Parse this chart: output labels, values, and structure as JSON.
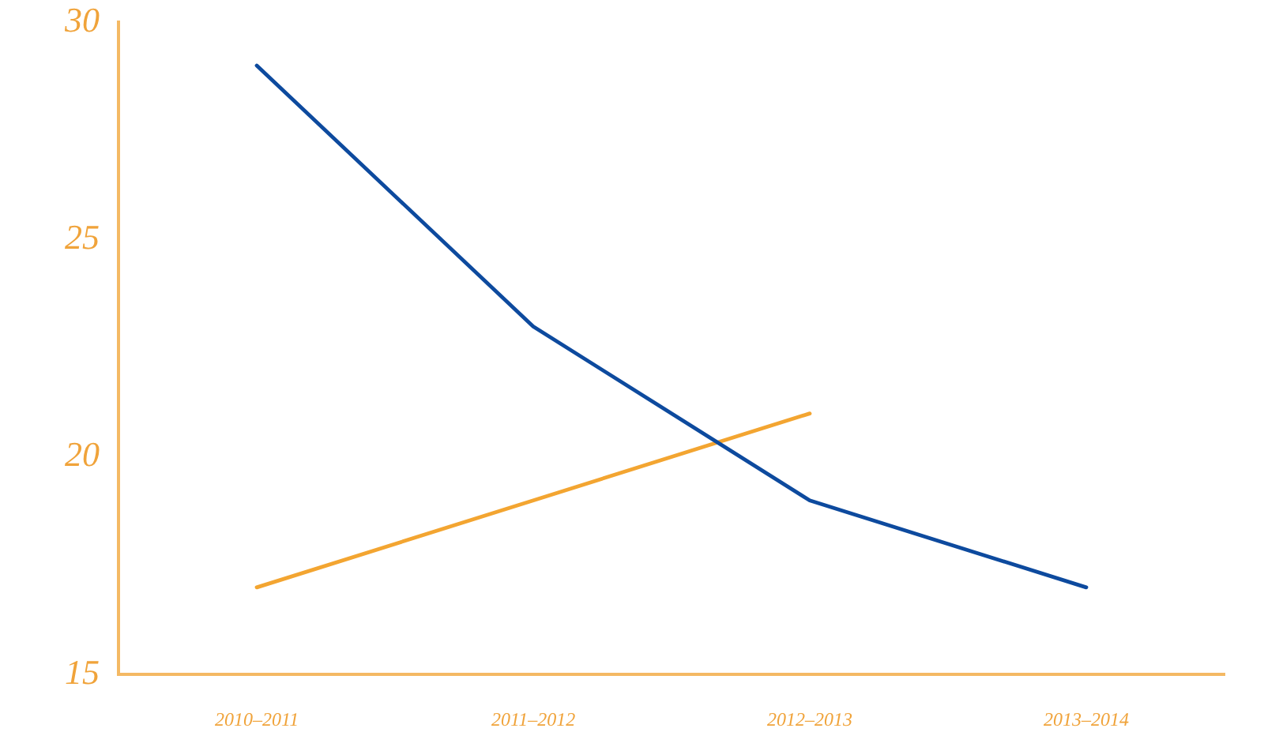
{
  "chart_data": {
    "type": "line",
    "categories": [
      "2010–2011",
      "2011–2012",
      "2012–2013",
      "2013–2014"
    ],
    "series": [
      {
        "color": "#0d4a9e",
        "values": [
          29.0,
          23.0,
          19.0,
          17.0
        ]
      },
      {
        "color": "#f3a531",
        "values": [
          17.0,
          19.0,
          21.0,
          null
        ]
      }
    ],
    "ylim": [
      15,
      30
    ],
    "yticks": [
      15,
      20,
      25,
      30
    ],
    "marker": "none",
    "line_style": "solid"
  }
}
